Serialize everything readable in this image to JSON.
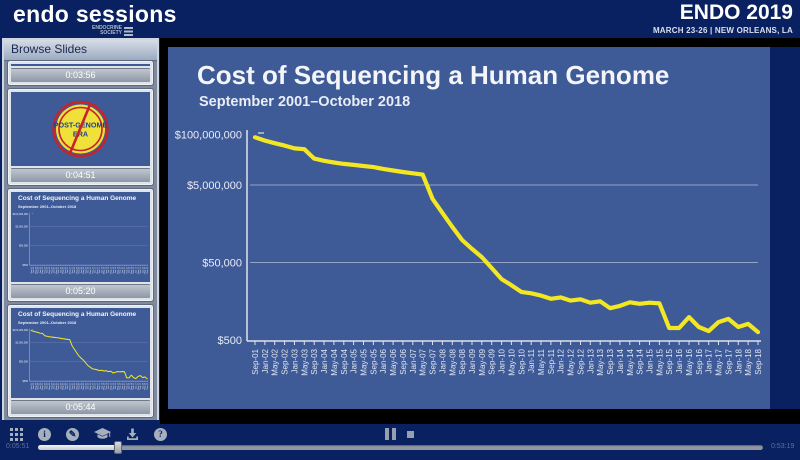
{
  "header": {
    "brand": "endo sessions",
    "logo_text": "ENDOCRINE\nSOCIETY",
    "event_title": "ENDO 2019",
    "event_subtitle": "MARCH 23-26  |  NEW ORLEANS, LA"
  },
  "sidebar": {
    "title": "Browse Slides",
    "thumbnails": [
      {
        "timestamp": "0:03:56"
      },
      {
        "timestamp": "0:04:51",
        "badge_line1": "POST-GENOME",
        "badge_line2": "ERA"
      },
      {
        "timestamp": "0:05:20"
      },
      {
        "timestamp": "0:05:44"
      },
      {
        "timestamp": ""
      }
    ]
  },
  "slide": {
    "title": "Cost of Sequencing a Human Genome",
    "subtitle": "September 2001–October 2018"
  },
  "chart_data": {
    "type": "line",
    "title": "Cost of Sequencing a Human Genome",
    "subtitle": "September 2001–October 2018",
    "y_scale": "log",
    "ylabel": "",
    "xlabel": "",
    "grid": true,
    "line_color": "#f2e722",
    "y_tick_labels": [
      "$100,000,000",
      "$5,000,000",
      "$50,000",
      "$500"
    ],
    "y_tick_values": [
      100000000,
      5000000,
      50000,
      500
    ],
    "x_labels": [
      "Sep-01",
      "Jan-02",
      "May-02",
      "Sep-02",
      "Jan-03",
      "May-03",
      "Sep-03",
      "Jan-04",
      "May-04",
      "Sep-04",
      "Jan-05",
      "May-05",
      "Sep-05",
      "Jan-06",
      "May-06",
      "Sep-06",
      "Jan-07",
      "May-07",
      "Sep-07",
      "Jan-08",
      "May-08",
      "Sep-08",
      "Jan-09",
      "May-09",
      "Sep-09",
      "Jan-10",
      "May-10",
      "Sep-10",
      "Jan-11",
      "May-11",
      "Sep-11",
      "Jan-12",
      "May-12",
      "Sep-12",
      "Jan-13",
      "May-13",
      "Sep-13",
      "Jan-14",
      "May-14",
      "Sep-14",
      "Jan-15",
      "May-15",
      "Sep-15",
      "Jan-16",
      "May-16",
      "Sep-16",
      "Jan-17",
      "May-17",
      "Sep-17",
      "Jan-18",
      "May-18",
      "Sep-18"
    ],
    "values": [
      85000000,
      70000000,
      60000000,
      52000000,
      44000000,
      42000000,
      24000000,
      21000000,
      19000000,
      17500000,
      16500000,
      15500000,
      14500000,
      13000000,
      11800000,
      10800000,
      10000000,
      9300000,
      2200000,
      950000,
      415000,
      190000,
      112000,
      69000,
      36000,
      18600,
      13000,
      8700,
      8000,
      7000,
      5800,
      6300,
      5200,
      5600,
      4600,
      5000,
      3300,
      3800,
      4700,
      4300,
      4600,
      4400,
      1020,
      1020,
      1950,
      1080,
      850,
      1450,
      1750,
      1080,
      1300,
      800
    ]
  },
  "player": {
    "icons": [
      "grid-view",
      "info",
      "notes",
      "education",
      "download",
      "help"
    ],
    "info_glyph": "i",
    "edit_glyph": "✎",
    "help_glyph": "?",
    "current_time": "0:05:51",
    "total_time": "0:53:19",
    "progress_percent": 10.97
  },
  "colors": {
    "navy": "#0a2161",
    "slide_blue": "#3e5a97",
    "line_yellow": "#f2e722",
    "icon_silver": "#a6b0bd"
  }
}
